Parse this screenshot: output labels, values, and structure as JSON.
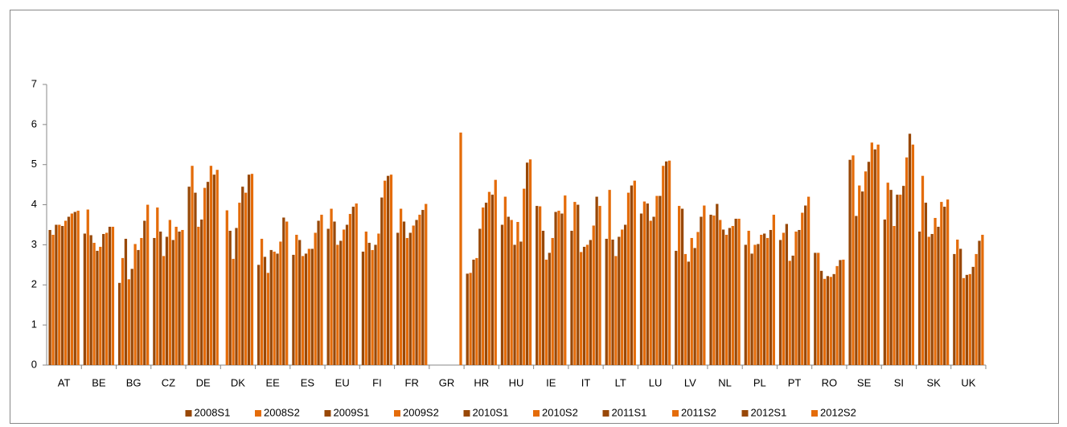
{
  "chart_data": {
    "type": "bar",
    "categories": [
      "AT",
      "BE",
      "BG",
      "CZ",
      "DE",
      "DK",
      "EE",
      "ES",
      "EU",
      "FI",
      "FR",
      "GR",
      "HR",
      "HU",
      "IE",
      "IT",
      "LT",
      "LU",
      "LV",
      "NL",
      "PL",
      "PT",
      "RO",
      "SE",
      "SI",
      "SK",
      "UK"
    ],
    "series": [
      {
        "name": "2008S1",
        "color": "#984807",
        "values": [
          3.37,
          3.28,
          2.05,
          3.17,
          4.45,
          null,
          2.5,
          2.75,
          3.4,
          2.83,
          3.3,
          null,
          2.28,
          3.5,
          3.97,
          3.35,
          3.15,
          3.78,
          2.85,
          3.75,
          3.0,
          3.12,
          2.8,
          5.12,
          3.63,
          3.33,
          2.77
        ]
      },
      {
        "name": "2008S2",
        "color": "#e46c0a",
        "values": [
          3.25,
          3.88,
          2.67,
          3.93,
          4.97,
          3.86,
          3.15,
          3.25,
          3.9,
          3.33,
          3.9,
          null,
          2.3,
          4.2,
          3.96,
          4.07,
          4.37,
          4.08,
          3.97,
          3.73,
          3.35,
          3.3,
          2.8,
          5.23,
          4.55,
          4.72,
          3.13
        ]
      },
      {
        "name": "2009S1",
        "color": "#984807",
        "values": [
          3.5,
          3.24,
          3.15,
          3.33,
          4.3,
          3.35,
          2.7,
          3.12,
          3.58,
          3.05,
          3.58,
          null,
          2.63,
          3.7,
          3.35,
          4.0,
          3.13,
          4.03,
          3.9,
          4.02,
          2.78,
          3.52,
          2.35,
          3.72,
          4.37,
          4.05,
          2.9
        ]
      },
      {
        "name": "2009S2",
        "color": "#e46c0a",
        "values": [
          3.5,
          3.05,
          2.14,
          2.72,
          3.45,
          2.65,
          2.3,
          2.72,
          3.0,
          2.87,
          3.17,
          null,
          2.67,
          3.62,
          2.63,
          2.82,
          2.72,
          3.6,
          2.77,
          3.62,
          3.0,
          2.6,
          2.15,
          4.48,
          3.47,
          3.2,
          2.17
        ]
      },
      {
        "name": "2010S1",
        "color": "#984807",
        "values": [
          3.47,
          2.85,
          2.4,
          3.2,
          3.63,
          3.42,
          2.87,
          2.78,
          3.1,
          3.0,
          3.3,
          null,
          3.4,
          3.0,
          2.8,
          2.95,
          3.2,
          3.7,
          2.58,
          3.38,
          3.02,
          2.73,
          2.22,
          4.33,
          4.25,
          3.27,
          2.25
        ]
      },
      {
        "name": "2010S2",
        "color": "#e46c0a",
        "values": [
          3.6,
          2.95,
          3.02,
          3.62,
          4.42,
          4.05,
          2.83,
          2.9,
          3.38,
          3.28,
          3.48,
          null,
          3.93,
          3.57,
          3.17,
          3.0,
          3.38,
          4.22,
          3.17,
          3.25,
          3.25,
          3.33,
          2.2,
          4.83,
          4.25,
          3.67,
          2.27
        ]
      },
      {
        "name": "2011S1",
        "color": "#984807",
        "values": [
          3.7,
          3.27,
          2.87,
          3.12,
          4.57,
          4.45,
          2.78,
          2.9,
          3.5,
          4.18,
          3.62,
          null,
          4.05,
          3.08,
          3.82,
          3.12,
          3.5,
          4.22,
          2.92,
          3.42,
          3.28,
          3.37,
          2.27,
          5.07,
          4.47,
          3.45,
          2.45
        ]
      },
      {
        "name": "2011S2",
        "color": "#e46c0a",
        "values": [
          3.78,
          3.3,
          3.17,
          3.45,
          4.97,
          4.3,
          3.08,
          3.3,
          3.77,
          4.6,
          3.75,
          null,
          4.32,
          4.4,
          3.85,
          3.48,
          4.3,
          4.97,
          3.32,
          3.47,
          3.17,
          3.8,
          2.47,
          5.55,
          5.18,
          4.07,
          2.77
        ]
      },
      {
        "name": "2012S1",
        "color": "#984807",
        "values": [
          3.82,
          3.45,
          3.6,
          3.33,
          4.75,
          4.75,
          3.68,
          3.6,
          3.95,
          4.72,
          3.87,
          null,
          4.25,
          5.05,
          3.78,
          4.2,
          4.48,
          5.08,
          3.7,
          3.65,
          3.37,
          3.98,
          2.62,
          5.38,
          5.77,
          3.95,
          3.1
        ]
      },
      {
        "name": "2012S2",
        "color": "#e46c0a",
        "values": [
          3.85,
          3.45,
          4.0,
          3.37,
          4.87,
          4.77,
          3.58,
          3.75,
          4.03,
          4.75,
          4.02,
          5.8,
          4.62,
          5.13,
          4.23,
          3.97,
          4.6,
          5.1,
          3.98,
          3.65,
          3.75,
          4.2,
          2.63,
          5.5,
          5.5,
          4.13,
          3.25
        ]
      }
    ],
    "ylim": [
      0,
      7
    ],
    "yticks": [
      0,
      1,
      2,
      3,
      4,
      5,
      6,
      7
    ],
    "legend": "bottom"
  }
}
